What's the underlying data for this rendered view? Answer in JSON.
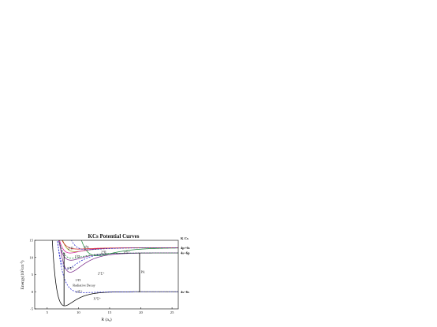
{
  "chart_data": {
    "type": "line",
    "title": "KCs Potential Curves",
    "xlabel": "R (a",
    "xlabel_sub": "o",
    "xlabel_close": ")",
    "ylabel": "Energy(10",
    "ylabel_sup": "3",
    "ylabel_unit": "cm",
    "ylabel_sup2": "-1",
    "ylabel_close": ")",
    "xlim": [
      3,
      26
    ],
    "ylim": [
      -5,
      15
    ],
    "xticks": [
      5,
      10,
      15,
      20,
      25
    ],
    "yticks": [
      -5,
      0,
      5,
      10,
      15
    ],
    "grid": false,
    "asymptote_header": "K Cs",
    "asymptotes": [
      {
        "label": "4p+6s",
        "y": 12.8
      },
      {
        "label": "4s+6p",
        "y": 11.3
      },
      {
        "label": "4s+6s",
        "y": 0.0
      }
    ],
    "state_labels": [
      {
        "text": "2",
        "sup": "1",
        "rest": "Π",
        "x": 8.3,
        "y": 12.3
      },
      {
        "text": "3",
        "sup": "3",
        "rest": "Σ",
        "x": 10.9,
        "y": 12.7
      },
      {
        "text": "2",
        "sup": "3",
        "rest": "Π",
        "x": 13.6,
        "y": 11.2
      },
      {
        "text": "1",
        "sup": "3",
        "rest": "Π",
        "x": 9.4,
        "y": 10.0
      },
      {
        "text": "3",
        "sup": "1",
        "rest": "Σ⁺",
        "x": 17.2,
        "y": 11.2
      },
      {
        "text": "3",
        "sup": "1",
        "rest": "Σ⁺",
        "x": 8.2,
        "y": 6.5
      },
      {
        "text": "1",
        "sup": "1",
        "rest": "Π",
        "x": 9.5,
        "y": 3.0
      },
      {
        "text": "2",
        "sup": "1",
        "rest": "Σ⁺",
        "x": 13.1,
        "y": 5.0
      },
      {
        "text": "a",
        "sup": "3",
        "rest": "Σ⁺",
        "x": 9.6,
        "y": -0.3
      },
      {
        "text": "X",
        "sup": "1",
        "rest": "Σ⁺",
        "x": 12.4,
        "y": -2.3
      }
    ],
    "annotations": [
      {
        "text": "Radiative Decay",
        "x": 9.1,
        "y": 1.6
      },
      {
        "text": "PA",
        "x": 20.0,
        "y": 5.5
      }
    ],
    "transitions": [
      {
        "name": "radiative-decay",
        "x": 7.7,
        "y_from": 11.3,
        "y_to": -4.0
      },
      {
        "name": "photoassociation",
        "x": 19.8,
        "y_from": 0.0,
        "y_to": 11.3
      }
    ],
    "series": [
      {
        "key": "X",
        "color": "#000000",
        "dash": false,
        "curve": {
          "De": 4.1,
          "Re": 7.8,
          "a": 0.58,
          "Einf": 0.0
        }
      },
      {
        "key": "a",
        "color": "#2222cc",
        "dash": true,
        "curve": {
          "De": 0.25,
          "Re": 11.0,
          "a": 0.5,
          "Einf": 0.0
        }
      },
      {
        "key": "A",
        "color": "#7a2b8a",
        "dash": false,
        "curve": {
          "De": 5.6,
          "Re": 8.7,
          "a": 0.48,
          "Einf": 11.3
        }
      },
      {
        "key": "b",
        "color": "#2222cc",
        "dash": true,
        "curve": {
          "De": 4.6,
          "Re": 8.2,
          "a": 0.55,
          "Einf": 11.3
        }
      },
      {
        "key": "B",
        "color": "#7a2b8a",
        "dash": false,
        "curve": {
          "De": 2.1,
          "Re": 8.8,
          "a": 0.5,
          "Einf": 11.3
        }
      },
      {
        "key": "c",
        "color": "#1a8a3a",
        "dash": true,
        "curve": {
          "De": 1.5,
          "Re": 9.0,
          "a": 0.5,
          "Einf": 11.3
        }
      },
      {
        "key": "d",
        "color": "#1a8a3a",
        "dash": false,
        "curve": {
          "De": 2.3,
          "Re": 13.0,
          "a": 0.35,
          "Einf": 12.8
        }
      },
      {
        "key": "e",
        "color": "#9a9a10",
        "dash": false,
        "curve": {
          "De": 1.1,
          "Re": 9.5,
          "a": 0.5,
          "Einf": 12.8
        }
      },
      {
        "key": "f",
        "color": "#d41f9a",
        "dash": false,
        "curve": {
          "De": 1.5,
          "Re": 8.7,
          "a": 0.55,
          "Einf": 12.8
        }
      },
      {
        "key": "g",
        "color": "#cc2222",
        "dash": false,
        "curve": {
          "De": 0.35,
          "Re": 10.0,
          "a": 0.5,
          "Einf": 12.8
        }
      },
      {
        "key": "h",
        "color": "#2222cc",
        "dash": true,
        "curve": {
          "De": 0.55,
          "Re": 11.5,
          "a": 0.45,
          "Einf": 12.8
        }
      }
    ]
  }
}
